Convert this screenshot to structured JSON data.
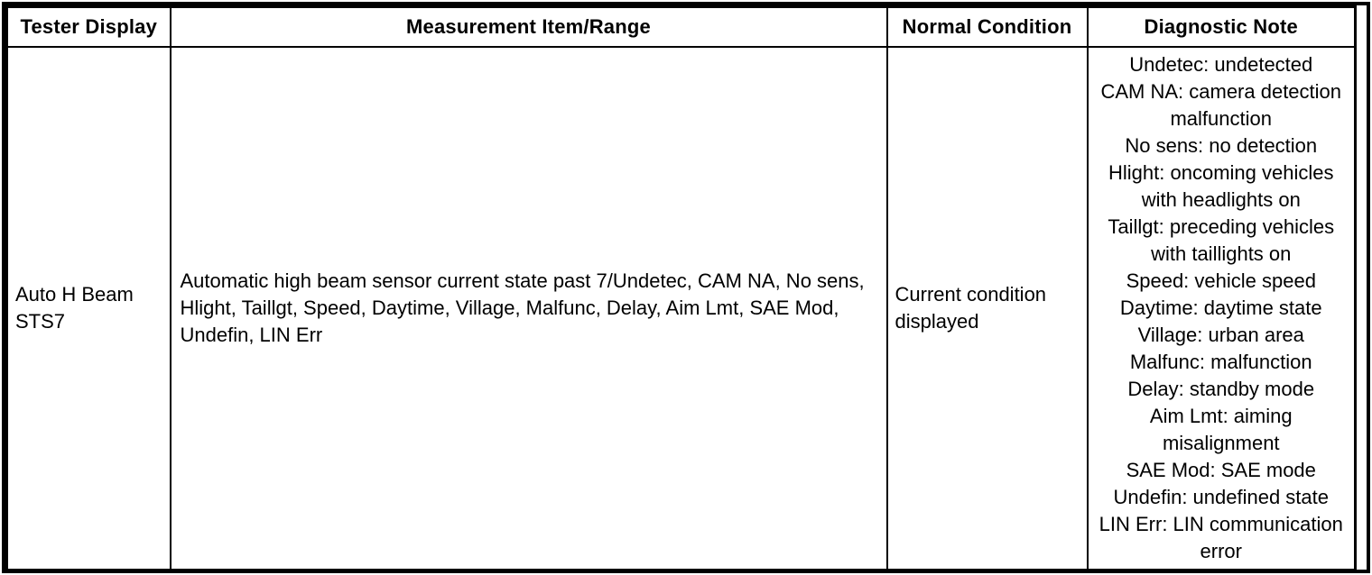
{
  "table": {
    "headers": [
      "Tester Display",
      "Measurement Item/Range",
      "Normal Condition",
      "Diagnostic Note"
    ],
    "row": {
      "tester_display": "Auto H Beam STS7",
      "measurement_item_range": "Automatic high beam sensor current state past 7/Undetec, CAM NA, No sens, Hlight, Taillgt, Speed, Daytime, Village, Malfunc, Delay, Aim Lmt, SAE Mod, Undefin, LIN Err",
      "normal_condition": "Current condition displayed",
      "diagnostic_notes": [
        "Undetec: undetected",
        "CAM NA: camera detection malfunction",
        "No sens: no detection",
        "Hlight: oncoming vehicles with headlights on",
        "Taillgt: preceding vehicles with taillights on",
        "Speed: vehicle speed",
        "Daytime: daytime state",
        "Village: urban area",
        "Malfunc: malfunction",
        "Delay: standby mode",
        "Aim Lmt: aiming misalignment",
        "SAE Mod: SAE mode",
        "Undefin: undefined state",
        "LIN Err: LIN communication error"
      ]
    },
    "colors": {
      "border": "#000000",
      "text": "#000000",
      "background": "#ffffff"
    }
  }
}
